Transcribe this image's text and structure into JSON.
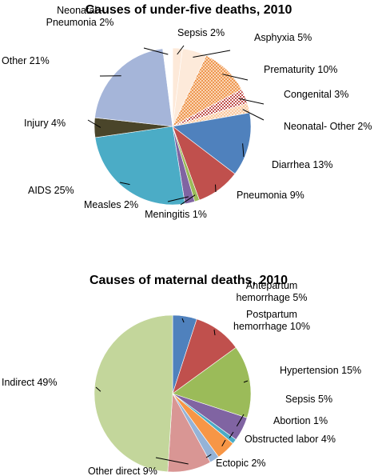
{
  "colors": {
    "blue": "#4f81bd",
    "red": "#c0504d",
    "green": "#9bbb59",
    "purple": "#8064a2",
    "cyan": "#4bacc6",
    "orange": "#f79646",
    "dark_olive": "#4a452a",
    "lavender": "#a5b5d9",
    "light_green": "#c3d69b",
    "pink": "#d99694",
    "light_blue": "#95b3d7",
    "peach": "#fde9d9",
    "dotted_orange": "#fac090",
    "check_red": "#c0504d"
  },
  "chart_data": [
    {
      "type": "pie",
      "title": "Causes of under-five deaths, 2010",
      "start": "top",
      "direction": "clockwise",
      "slices": [
        {
          "label_lines": [
            "Sepsis 2%"
          ],
          "name": "Sepsis",
          "value": 2,
          "color": "#fde9d9",
          "pattern": "none"
        },
        {
          "label_lines": [
            "Asphyxia 5%"
          ],
          "name": "Asphyxia",
          "value": 5,
          "color": "#fdeada",
          "pattern": "none"
        },
        {
          "label_lines": [
            "Prematurity 10%"
          ],
          "name": "Prematurity",
          "value": 10,
          "color": "#fac090",
          "pattern": "dots"
        },
        {
          "label_lines": [
            "Congenital 3%"
          ],
          "name": "Congenital",
          "value": 3,
          "color": "#c0504d",
          "pattern": "check"
        },
        {
          "label_lines": [
            "Neonatal- Other 2%"
          ],
          "name": "Neonatal- Other",
          "value": 2,
          "color": "#fde9d9",
          "pattern": "dots-light"
        },
        {
          "label_lines": [
            "Diarrhea 13%"
          ],
          "name": "Diarrhea",
          "value": 13,
          "color": "#4f81bd",
          "pattern": "none"
        },
        {
          "label_lines": [
            "Pneumonia 9%"
          ],
          "name": "Pneumonia",
          "value": 9,
          "color": "#c0504d",
          "pattern": "none"
        },
        {
          "label_lines": [
            "Meningitis 1%"
          ],
          "name": "Meningitis",
          "value": 1,
          "color": "#9bbb59",
          "pattern": "none"
        },
        {
          "label_lines": [
            "Measles 2%"
          ],
          "name": "Measles",
          "value": 2,
          "color": "#8064a2",
          "pattern": "none"
        },
        {
          "label_lines": [
            "AIDS 25%"
          ],
          "name": "AIDS",
          "value": 25,
          "color": "#4bacc6",
          "pattern": "none"
        },
        {
          "label_lines": [
            "Injury 4%"
          ],
          "name": "Injury",
          "value": 4,
          "color": "#4a452a",
          "pattern": "none"
        },
        {
          "label_lines": [
            "Other 21%"
          ],
          "name": "Other",
          "value": 21,
          "color": "#a5b5d9",
          "pattern": "none"
        },
        {
          "label_lines": [
            "Neonatal -",
            "Pneumonia 2%"
          ],
          "name": "Neonatal - Pneumonia",
          "value": 2,
          "color": "#ffffff",
          "pattern": "none"
        }
      ]
    },
    {
      "type": "pie",
      "title": "Causes of maternal deaths, 2010",
      "start": "top",
      "direction": "clockwise",
      "slices": [
        {
          "label_lines": [
            "Antepartum",
            "hemorrhage 5%"
          ],
          "name": "Antepartum hemorrhage",
          "value": 5,
          "color": "#4f81bd",
          "pattern": "none"
        },
        {
          "label_lines": [
            "Postpartum",
            "hemorrhage 10%"
          ],
          "name": "Postpartum hemorrhage",
          "value": 10,
          "color": "#c0504d",
          "pattern": "none"
        },
        {
          "label_lines": [
            "Hypertension 15%"
          ],
          "name": "Hypertension",
          "value": 15,
          "color": "#9bbb59",
          "pattern": "none"
        },
        {
          "label_lines": [
            "Sepsis 5%"
          ],
          "name": "Sepsis",
          "value": 5,
          "color": "#8064a2",
          "pattern": "none"
        },
        {
          "label_lines": [
            "Abortion 1%"
          ],
          "name": "Abortion",
          "value": 1,
          "color": "#4bacc6",
          "pattern": "none"
        },
        {
          "label_lines": [
            "Obstructed labor 4%"
          ],
          "name": "Obstructed labor",
          "value": 4,
          "color": "#f79646",
          "pattern": "none"
        },
        {
          "label_lines": [
            "Ectopic 2%"
          ],
          "name": "Ectopic",
          "value": 2,
          "color": "#95b3d7",
          "pattern": "none"
        },
        {
          "label_lines": [
            "Other direct 9%"
          ],
          "name": "Other direct",
          "value": 9,
          "color": "#d99694",
          "pattern": "none"
        },
        {
          "label_lines": [
            "Indirect 49%"
          ],
          "name": "Indirect",
          "value": 49,
          "color": "#c3d69b",
          "pattern": "none"
        }
      ]
    }
  ]
}
